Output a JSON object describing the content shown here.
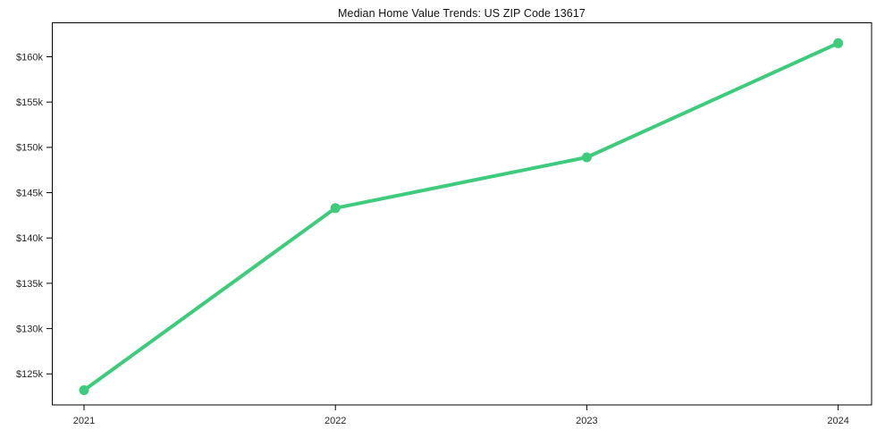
{
  "chart_data": {
    "type": "line",
    "title": "Median Home Value Trends: US ZIP Code 13617",
    "x": [
      2021,
      2022,
      2023,
      2024
    ],
    "x_tick_labels": [
      "2021",
      "2022",
      "2023",
      "2024"
    ],
    "series": [
      {
        "name": "Median Home Value",
        "values": [
          123200,
          143300,
          148900,
          161500
        ]
      }
    ],
    "y_ticks": [
      125000,
      130000,
      135000,
      140000,
      145000,
      150000,
      155000,
      160000
    ],
    "y_tick_labels": [
      "$125k",
      "$130k",
      "$135k",
      "$140k",
      "$145k",
      "$150k",
      "$155k",
      "$160k"
    ],
    "xlabel": "",
    "ylabel": "",
    "ylim": [
      121600,
      163800
    ],
    "grid": false,
    "legend": "none",
    "line_color": "#3ecb7c",
    "marker": "circle",
    "axis_color": "#000000",
    "tick_label_color": "#262626"
  }
}
